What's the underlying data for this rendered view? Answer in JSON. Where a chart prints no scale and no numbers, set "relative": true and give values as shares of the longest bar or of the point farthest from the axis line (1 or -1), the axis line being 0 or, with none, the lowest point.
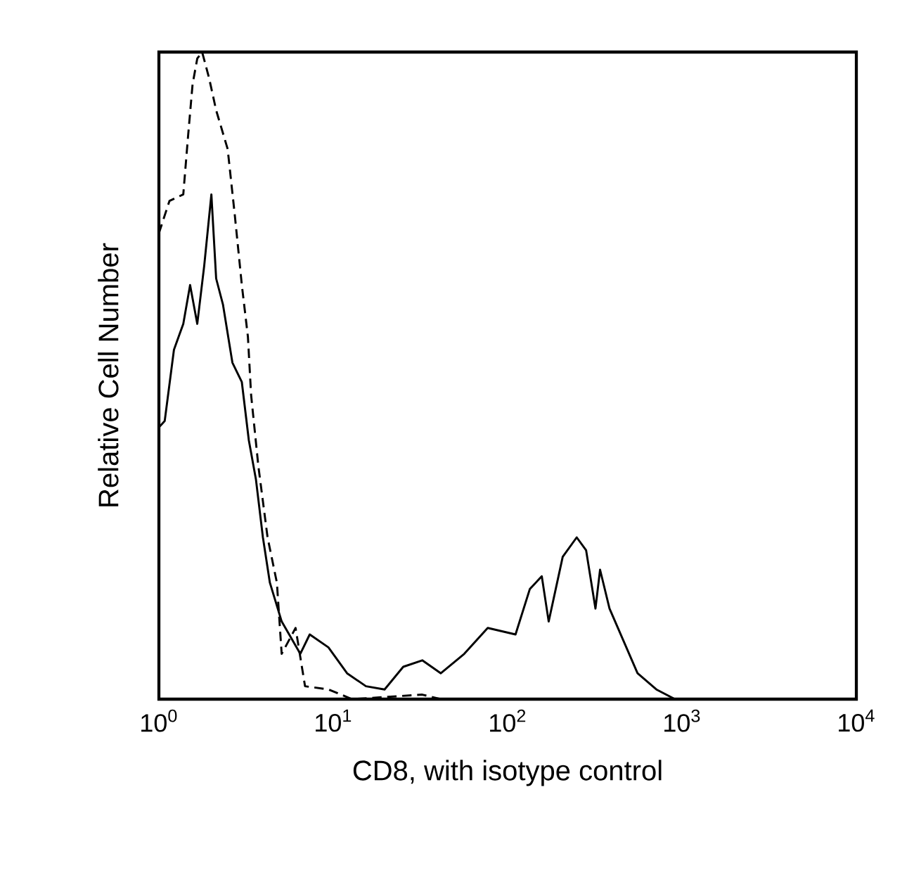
{
  "chart_data": {
    "type": "line",
    "relative": true,
    "log": "x",
    "marker": "none",
    "xlabel": "CD8, with isotype control",
    "ylabel": "Relative Cell Number",
    "xlim": [
      1,
      10000
    ],
    "xticks": [
      {
        "value": 1,
        "label": "10$^{0}$"
      },
      {
        "value": 10,
        "label": "10$^{1}$"
      },
      {
        "value": 100,
        "label": "10$^{2}$"
      },
      {
        "value": 1000,
        "label": "10$^{3}$"
      },
      {
        "value": 10000,
        "label": "10$^{4}$"
      }
    ],
    "series": [
      {
        "color": "#000000",
        "line_style": "dashed",
        "x": [
          1,
          1.15,
          1.38,
          1.47,
          1.56,
          1.66,
          1.77,
          1.94,
          2.13,
          2.48,
          2.72,
          2.99,
          3.24,
          3.38,
          3.72,
          4.2,
          4.75,
          5.06,
          6.08,
          6.89,
          9.4,
          12.8,
          32.4,
          41.4
        ],
        "values": [
          0.72,
          0.77,
          0.78,
          0.87,
          0.95,
          0.99,
          1.0,
          0.96,
          0.91,
          0.85,
          0.75,
          0.64,
          0.56,
          0.47,
          0.36,
          0.25,
          0.18,
          0.07,
          0.11,
          0.02,
          0.015,
          0,
          0.007,
          0
        ]
      },
      {
        "color": "#000000",
        "line_style": "solid",
        "x": [
          1,
          1.08,
          1.22,
          1.38,
          1.51,
          1.66,
          1.82,
          2.0,
          2.13,
          2.33,
          2.64,
          2.99,
          3.28,
          3.6,
          3.95,
          4.33,
          5.06,
          6.47,
          7.33,
          9.38,
          12.0,
          15.4,
          19.7,
          25.2,
          32.4,
          41.4,
          56.4,
          76.9,
          111,
          134,
          157,
          172,
          207,
          249,
          282,
          319,
          339,
          384,
          462,
          556,
          713,
          912
        ],
        "values": [
          0.42,
          0.43,
          0.54,
          0.58,
          0.64,
          0.58,
          0.67,
          0.78,
          0.65,
          0.61,
          0.52,
          0.49,
          0.4,
          0.34,
          0.25,
          0.18,
          0.12,
          0.07,
          0.1,
          0.08,
          0.04,
          0.02,
          0.015,
          0.05,
          0.06,
          0.04,
          0.07,
          0.11,
          0.1,
          0.17,
          0.19,
          0.12,
          0.22,
          0.25,
          0.23,
          0.14,
          0.2,
          0.14,
          0.09,
          0.04,
          0.015,
          0
        ]
      }
    ]
  }
}
